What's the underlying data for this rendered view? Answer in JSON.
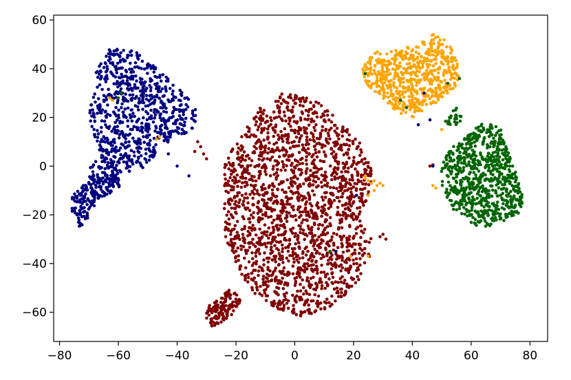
{
  "chart_data": {
    "type": "scatter",
    "title": "",
    "xlabel": "",
    "ylabel": "",
    "xlim": [
      -82,
      86
    ],
    "ylim": [
      -72,
      62
    ],
    "xticks": [
      -80,
      -60,
      -40,
      -20,
      0,
      20,
      40,
      60,
      80
    ],
    "yticks": [
      -60,
      -40,
      -20,
      0,
      20,
      40,
      60
    ],
    "xtick_labels": [
      "−80",
      "−60",
      "−40",
      "−20",
      "0",
      "20",
      "40",
      "60",
      "80"
    ],
    "ytick_labels": [
      "−60",
      "−40",
      "−20",
      "0",
      "20",
      "40",
      "60"
    ],
    "grid": false,
    "legend": "none",
    "series": [
      {
        "color": "#00007f",
        "clusters": [
          {
            "polygon": [
              [
                -68,
                38
              ],
              [
                -62,
                50
              ],
              [
                -55,
                48
              ],
              [
                -48,
                42
              ],
              [
                -42,
                35
              ],
              [
                -37,
                30
              ],
              [
                -33,
                22
              ],
              [
                -34,
                15
              ],
              [
                -40,
                12
              ],
              [
                -46,
                8
              ],
              [
                -50,
                0
              ],
              [
                -58,
                -3
              ],
              [
                -65,
                0
              ],
              [
                -70,
                20
              ]
            ],
            "count": 760
          },
          {
            "polygon": [
              [
                -76,
                -12
              ],
              [
                -72,
                -8
              ],
              [
                -68,
                -5
              ],
              [
                -62,
                -2
              ],
              [
                -58,
                -8
              ],
              [
                -66,
                -13
              ],
              [
                -70,
                -20
              ],
              [
                -72,
                -26
              ],
              [
                -76,
                -22
              ]
            ],
            "count": 170
          },
          {
            "polygon": [
              [
                -70,
                0
              ],
              [
                -66,
                4
              ],
              [
                -60,
                2
              ],
              [
                -60,
                -6
              ],
              [
                -66,
                -8
              ],
              [
                -70,
                -5
              ]
            ],
            "count": 60
          }
        ],
        "points": [
          [
            -40,
            0
          ],
          [
            -36,
            -4
          ],
          [
            -43,
            5
          ]
        ]
      },
      {
        "color": "#7f0000",
        "clusters": [
          {
            "polygon": [
              [
                -12,
                24
              ],
              [
                -4,
                30
              ],
              [
                6,
                28
              ],
              [
                14,
                20
              ],
              [
                22,
                10
              ],
              [
                26,
                0
              ],
              [
                26,
                -10
              ],
              [
                22,
                -20
              ],
              [
                26,
                -30
              ],
              [
                26,
                -40
              ],
              [
                20,
                -50
              ],
              [
                12,
                -58
              ],
              [
                4,
                -62
              ],
              [
                -4,
                -60
              ],
              [
                -10,
                -56
              ],
              [
                -16,
                -50
              ],
              [
                -20,
                -40
              ],
              [
                -24,
                -28
              ],
              [
                -24,
                -10
              ],
              [
                -24,
                0
              ],
              [
                -20,
                10
              ]
            ],
            "count": 1900
          },
          {
            "polygon": [
              [
                -30,
                -58
              ],
              [
                -26,
                -55
              ],
              [
                -22,
                -50
              ],
              [
                -18,
                -55
              ],
              [
                -22,
                -62
              ],
              [
                -28,
                -66
              ],
              [
                -30,
                -63
              ]
            ],
            "count": 120
          }
        ],
        "points": [
          [
            -33,
            10
          ],
          [
            -32,
            8
          ],
          [
            -31,
            5
          ],
          [
            -30,
            3
          ],
          [
            -34,
            6
          ],
          [
            29,
            -29
          ],
          [
            30,
            -28
          ],
          [
            31,
            -30
          ],
          [
            46,
            0
          ],
          [
            47,
            0.5
          ],
          [
            14,
            -36
          ],
          [
            15,
            -37
          ]
        ]
      },
      {
        "color": "#ffa500",
        "clusters": [
          {
            "polygon": [
              [
                22,
                40
              ],
              [
                27,
                47
              ],
              [
                36,
                48
              ],
              [
                42,
                50
              ],
              [
                48,
                55
              ],
              [
                53,
                50
              ],
              [
                56,
                40
              ],
              [
                55,
                32
              ],
              [
                50,
                28
              ],
              [
                46,
                24
              ],
              [
                40,
                20
              ],
              [
                35,
                22
              ],
              [
                30,
                28
              ],
              [
                25,
                33
              ]
            ],
            "count": 620
          }
        ],
        "points": [
          [
            24,
            -5
          ],
          [
            25,
            -6
          ],
          [
            26,
            -7
          ],
          [
            27,
            -6
          ],
          [
            28,
            -8
          ],
          [
            29,
            -7
          ],
          [
            30,
            -8
          ],
          [
            27,
            -10
          ],
          [
            25,
            -12
          ],
          [
            24,
            -4
          ],
          [
            -62,
            27
          ],
          [
            -63,
            28
          ],
          [
            -46,
            12
          ],
          [
            -47,
            11
          ],
          [
            25,
            -37
          ],
          [
            19,
            -37
          ],
          [
            48,
            -9
          ],
          [
            47,
            -8
          ],
          [
            50,
            15
          ],
          [
            52,
            18
          ]
        ]
      },
      {
        "color": "#006400",
        "clusters": [
          {
            "polygon": [
              [
                52,
                6
              ],
              [
                58,
                12
              ],
              [
                64,
                18
              ],
              [
                70,
                16
              ],
              [
                72,
                8
              ],
              [
                76,
                -4
              ],
              [
                78,
                -14
              ],
              [
                76,
                -20
              ],
              [
                66,
                -25
              ],
              [
                60,
                -24
              ],
              [
                54,
                -18
              ],
              [
                49,
                -8
              ],
              [
                50,
                0
              ]
            ],
            "count": 760
          },
          {
            "polygon": [
              [
                50,
                20
              ],
              [
                55,
                24
              ],
              [
                58,
                20
              ],
              [
                55,
                17
              ],
              [
                51,
                17
              ]
            ],
            "count": 25
          }
        ],
        "points": [
          [
            -60,
            28
          ],
          [
            -59,
            30
          ],
          [
            36,
            27
          ],
          [
            38,
            24
          ],
          [
            56,
            36
          ],
          [
            52,
            34
          ],
          [
            12,
            -35
          ],
          [
            24,
            38
          ],
          [
            60,
            8
          ]
        ]
      },
      {
        "color": "#00007f",
        "clusters": [],
        "points": [
          [
            44,
            30
          ],
          [
            42,
            17
          ],
          [
            46,
            19
          ],
          [
            21,
            -12
          ],
          [
            14,
            -35
          ],
          [
            47,
            0
          ]
        ]
      }
    ]
  }
}
